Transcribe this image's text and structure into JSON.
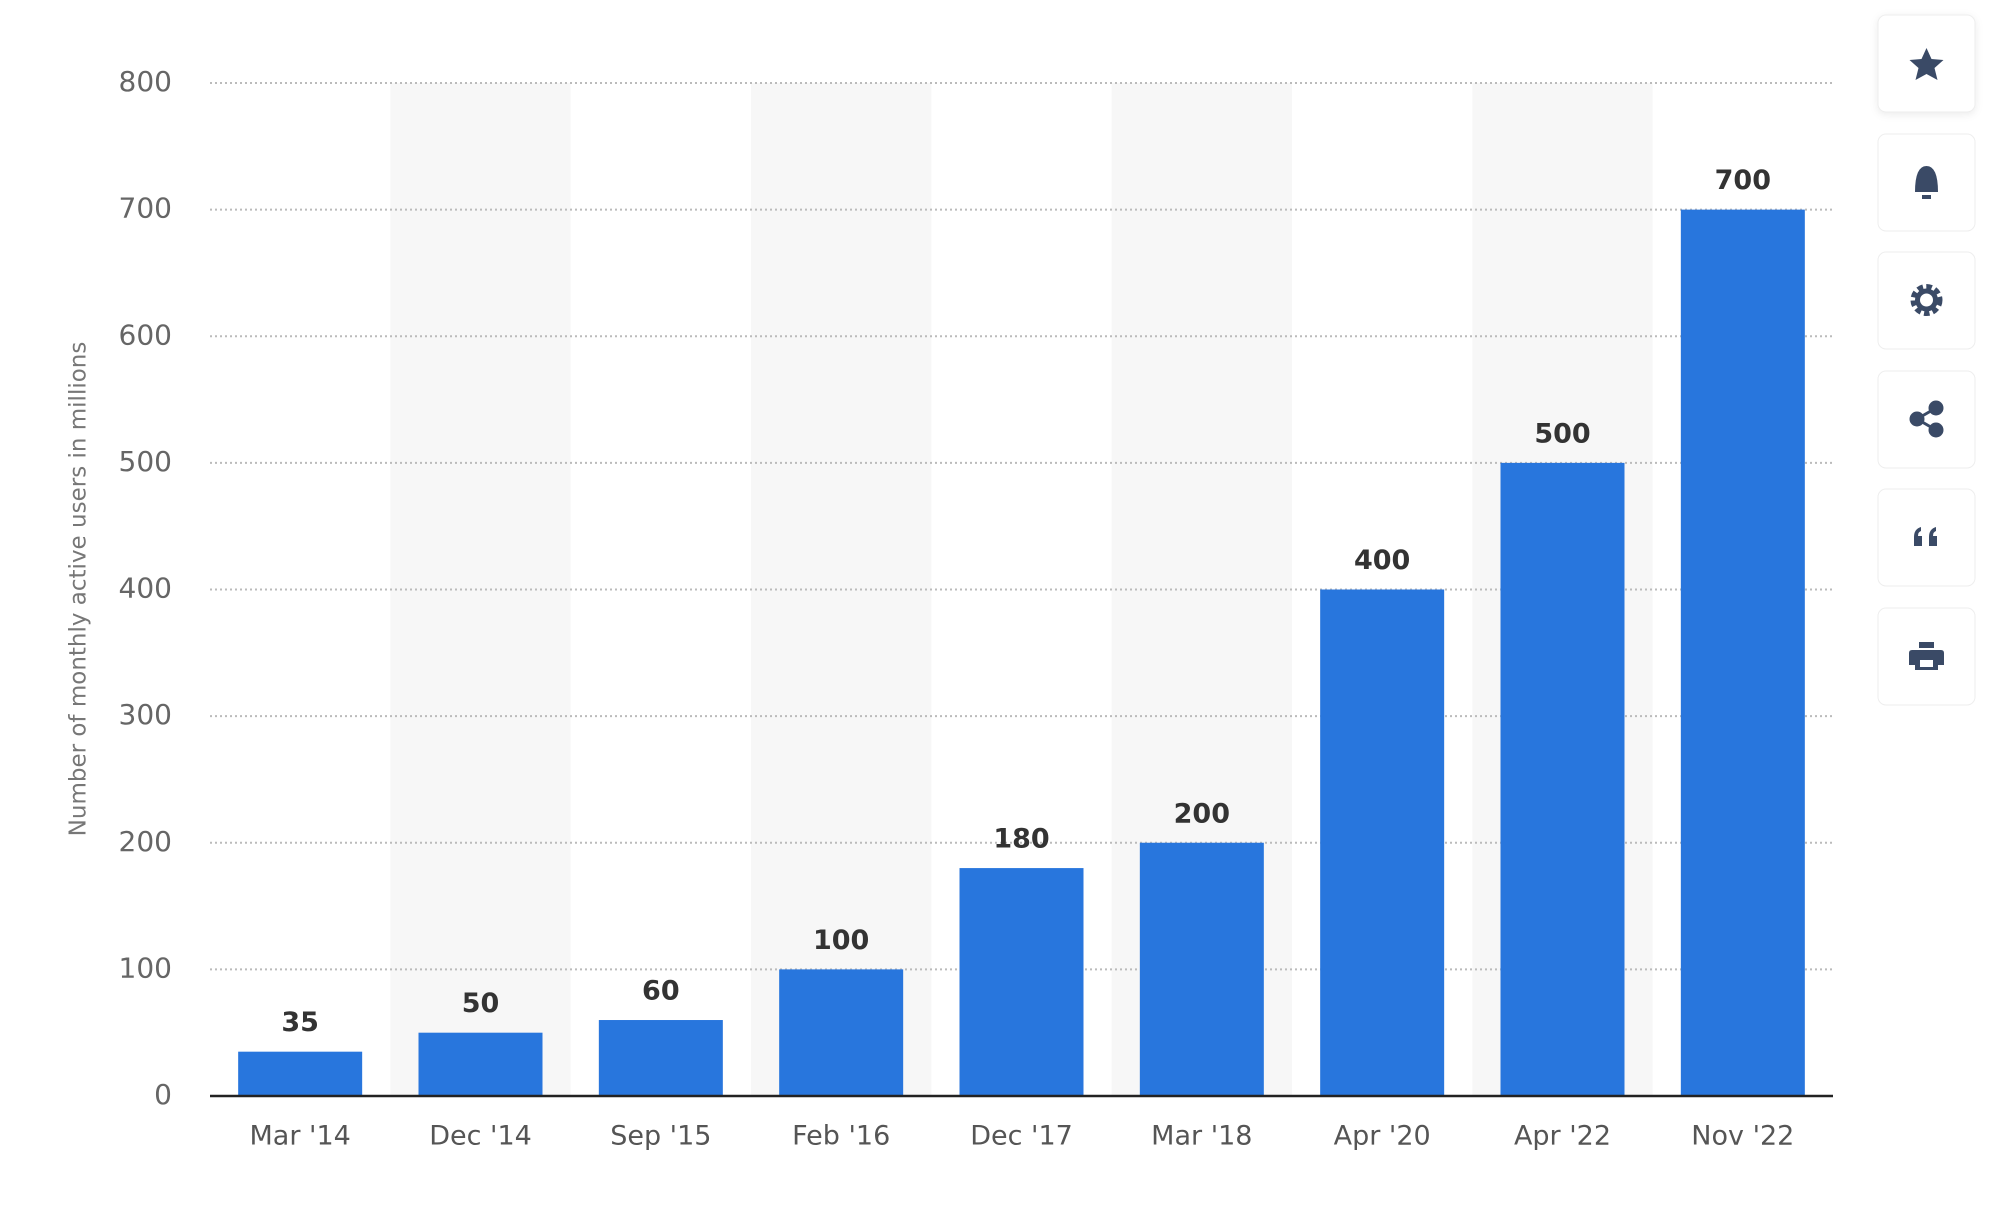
{
  "chart_data": {
    "type": "bar",
    "y_label": "Number of monthly active users in millions",
    "categories": [
      "Mar '14",
      "Dec '14",
      "Sep '15",
      "Feb '16",
      "Dec '17",
      "Mar '18",
      "Apr '20",
      "Apr '22",
      "Nov '22"
    ],
    "values": [
      35,
      50,
      60,
      100,
      180,
      200,
      400,
      500,
      700
    ],
    "color": "#2876dd",
    "ylim": [
      0,
      800
    ],
    "yticks": [
      0,
      100,
      200,
      300,
      400,
      500,
      600,
      700,
      800
    ],
    "grid": true
  }
}
